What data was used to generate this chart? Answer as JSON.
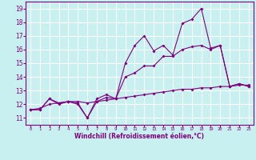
{
  "xlabel": "Windchill (Refroidissement éolien,°C)",
  "background_color": "#c8f0f0",
  "grid_color": "#ffffff",
  "line_color": "#800080",
  "x_values": [
    0,
    1,
    2,
    3,
    4,
    5,
    6,
    7,
    8,
    9,
    10,
    11,
    12,
    13,
    14,
    15,
    16,
    17,
    18,
    19,
    20,
    21,
    22,
    23
  ],
  "line1": [
    11.6,
    11.6,
    12.4,
    12.1,
    12.2,
    12.1,
    11.0,
    12.4,
    12.7,
    12.4,
    15.0,
    16.3,
    17.0,
    15.9,
    16.3,
    15.6,
    17.9,
    18.2,
    19.0,
    16.1,
    16.3,
    13.3,
    13.5,
    13.3
  ],
  "line2": [
    11.6,
    11.6,
    12.4,
    12.0,
    12.2,
    12.0,
    11.0,
    12.2,
    12.5,
    12.4,
    14.0,
    14.3,
    14.8,
    14.8,
    15.5,
    15.5,
    16.0,
    16.2,
    16.3,
    16.0,
    16.3,
    13.3,
    13.5,
    13.3
  ],
  "line3": [
    11.6,
    11.7,
    12.0,
    12.1,
    12.2,
    12.2,
    12.1,
    12.2,
    12.3,
    12.4,
    12.5,
    12.6,
    12.7,
    12.8,
    12.9,
    13.0,
    13.1,
    13.1,
    13.2,
    13.2,
    13.3,
    13.3,
    13.4,
    13.4
  ],
  "ylim": [
    10.5,
    19.5
  ],
  "yticks": [
    11,
    12,
    13,
    14,
    15,
    16,
    17,
    18,
    19
  ],
  "xlim": [
    -0.5,
    23.5
  ],
  "xtick_fontsize": 4.0,
  "ytick_fontsize": 5.5,
  "xlabel_fontsize": 5.5
}
